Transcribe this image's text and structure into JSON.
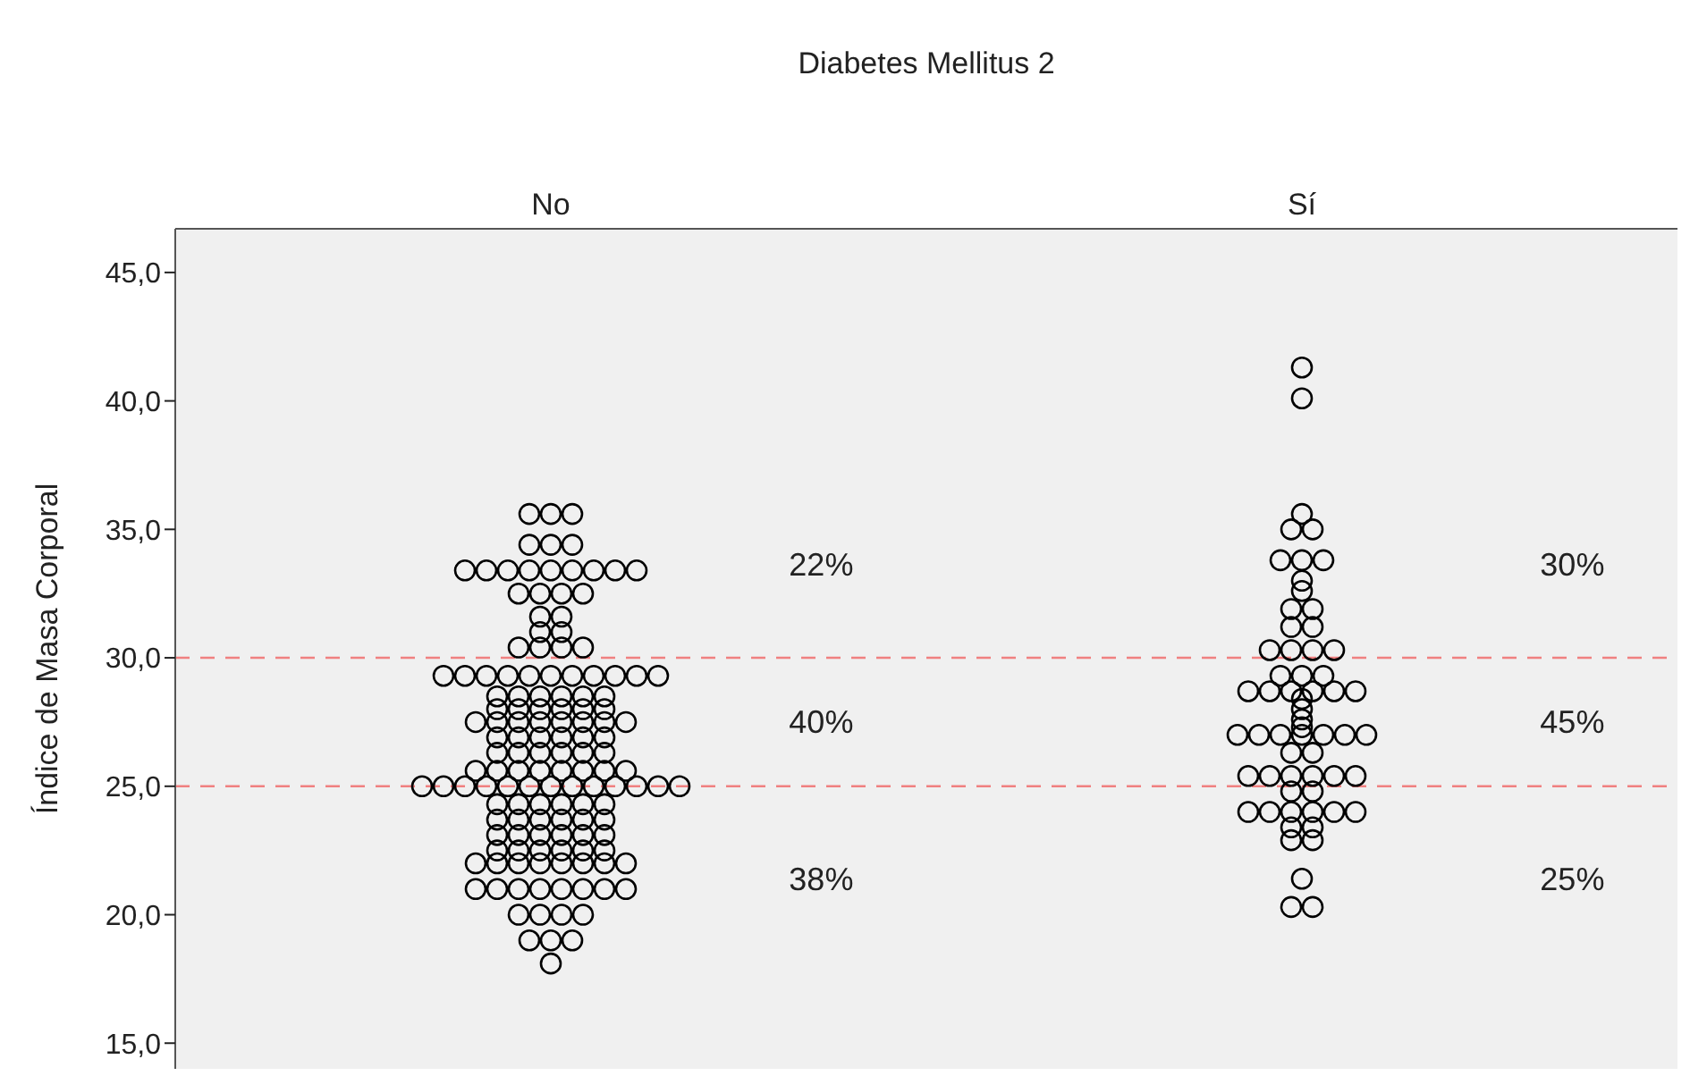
{
  "chart_data": {
    "type": "scatter",
    "xlabel": "Diabetes Mellitus 2",
    "ylabel": "Índice de Masa Corporal",
    "categories": [
      "No",
      "Sí"
    ],
    "ylim": [
      14,
      46.7
    ],
    "yticks": [
      {
        "value": 15,
        "label": "15,0"
      },
      {
        "value": 20,
        "label": "20,0"
      },
      {
        "value": 25,
        "label": "25,0"
      },
      {
        "value": 30,
        "label": "30,0"
      },
      {
        "value": 35,
        "label": "35,0"
      },
      {
        "value": 40,
        "label": "40,0"
      },
      {
        "value": 45,
        "label": "45,0"
      }
    ],
    "marker": "circle",
    "series": [
      {
        "color": "#000000",
        "x": [
          "No",
          "No",
          "No",
          "No",
          "No",
          "No",
          "No",
          "No",
          "No",
          "No",
          "No",
          "No",
          "No",
          "No",
          "No",
          "No",
          "No",
          "No",
          "No",
          "No",
          "No",
          "No",
          "No",
          "No",
          "No",
          "No",
          "No",
          "No",
          "No",
          "No",
          "No",
          "No",
          "No",
          "No",
          "No",
          "No",
          "No",
          "No",
          "No",
          "No",
          "No",
          "No",
          "No",
          "No",
          "No",
          "No",
          "No",
          "No",
          "No",
          "No",
          "No",
          "No",
          "No",
          "No",
          "No",
          "No",
          "No",
          "No",
          "No",
          "No",
          "No",
          "No",
          "No",
          "No",
          "No",
          "No",
          "No",
          "No",
          "No",
          "No",
          "No",
          "No",
          "No",
          "No",
          "No",
          "No",
          "No",
          "No",
          "No",
          "No",
          "No",
          "No",
          "No",
          "No",
          "No",
          "No",
          "No",
          "No",
          "No",
          "No",
          "No",
          "No",
          "No",
          "No",
          "No",
          "No",
          "No",
          "No",
          "No",
          "No",
          "No",
          "No",
          "No",
          "No",
          "No",
          "No",
          "No",
          "No",
          "No",
          "No",
          "No",
          "No",
          "No",
          "No",
          "No",
          "No",
          "No",
          "No",
          "No",
          "No",
          "No",
          "No",
          "No",
          "No",
          "No",
          "No",
          "No",
          "No",
          "No",
          "No",
          "No",
          "No",
          "No",
          "No",
          "No",
          "No",
          "No",
          "No",
          "No"
        ],
        "values": [
          35.6,
          35.6,
          35.6,
          34.4,
          34.4,
          34.4,
          33.4,
          33.4,
          33.4,
          33.4,
          33.4,
          33.4,
          33.4,
          33.4,
          33.4,
          32.5,
          32.5,
          32.5,
          32.5,
          31.6,
          31.6,
          31.0,
          31.0,
          30.4,
          30.4,
          30.4,
          30.4,
          29.3,
          29.3,
          29.3,
          29.3,
          29.3,
          29.3,
          29.3,
          29.3,
          29.3,
          29.3,
          29.3,
          28.5,
          28.5,
          28.5,
          28.5,
          28.5,
          28.5,
          28.0,
          28.0,
          28.0,
          28.0,
          28.0,
          28.0,
          27.5,
          27.5,
          27.5,
          27.5,
          27.5,
          27.5,
          27.5,
          27.5,
          26.9,
          26.9,
          26.9,
          26.9,
          26.9,
          26.9,
          26.3,
          26.3,
          26.3,
          26.3,
          26.3,
          26.3,
          25.6,
          25.6,
          25.6,
          25.6,
          25.6,
          25.6,
          25.6,
          25.6,
          25.0,
          25.0,
          25.0,
          25.0,
          25.0,
          25.0,
          25.0,
          25.0,
          25.0,
          25.0,
          25.0,
          25.0,
          25.0,
          24.3,
          24.3,
          24.3,
          24.3,
          24.3,
          24.3,
          23.7,
          23.7,
          23.7,
          23.7,
          23.7,
          23.7,
          23.1,
          23.1,
          23.1,
          23.1,
          23.1,
          23.1,
          22.5,
          22.5,
          22.5,
          22.5,
          22.5,
          22.5,
          22.0,
          22.0,
          22.0,
          22.0,
          22.0,
          22.0,
          22.0,
          22.0,
          21.0,
          21.0,
          21.0,
          21.0,
          21.0,
          21.0,
          21.0,
          21.0,
          20.0,
          20.0,
          20.0,
          20.0,
          19.0,
          19.0,
          19.0,
          18.1
        ]
      },
      {
        "color": "#000000",
        "x": [
          "Sí",
          "Sí",
          "Sí",
          "Sí",
          "Sí",
          "Sí",
          "Sí",
          "Sí",
          "Sí",
          "Sí",
          "Sí",
          "Sí",
          "Sí",
          "Sí",
          "Sí",
          "Sí",
          "Sí",
          "Sí",
          "Sí",
          "Sí",
          "Sí",
          "Sí",
          "Sí",
          "Sí",
          "Sí",
          "Sí",
          "Sí",
          "Sí",
          "Sí",
          "Sí",
          "Sí",
          "Sí",
          "Sí",
          "Sí",
          "Sí",
          "Sí",
          "Sí",
          "Sí",
          "Sí",
          "Sí",
          "Sí",
          "Sí",
          "Sí",
          "Sí",
          "Sí",
          "Sí",
          "Sí",
          "Sí",
          "Sí",
          "Sí",
          "Sí",
          "Sí",
          "Sí",
          "Sí",
          "Sí",
          "Sí",
          "Sí",
          "Sí",
          "Sí",
          "Sí",
          "Sí"
        ],
        "values": [
          41.3,
          40.1,
          35.6,
          35.0,
          35.0,
          33.8,
          33.8,
          33.8,
          33.0,
          32.6,
          31.9,
          31.9,
          31.2,
          31.2,
          30.3,
          30.3,
          30.3,
          30.3,
          29.3,
          29.3,
          29.3,
          28.7,
          28.7,
          28.7,
          28.7,
          28.7,
          28.7,
          28.4,
          28.0,
          27.6,
          27.3,
          27.0,
          27.0,
          27.0,
          27.0,
          27.0,
          27.0,
          27.0,
          26.3,
          26.3,
          25.4,
          25.4,
          25.4,
          25.4,
          25.4,
          25.4,
          24.8,
          24.8,
          24.0,
          24.0,
          24.0,
          24.0,
          24.0,
          24.0,
          23.4,
          23.4,
          22.9,
          22.9,
          21.4,
          20.3,
          20.3
        ]
      }
    ],
    "ref_lines": [
      {
        "axis": "y",
        "value": 30,
        "color": "#f08080",
        "line_style": "dashed"
      },
      {
        "axis": "y",
        "value": 25,
        "color": "#f08080",
        "line_style": "dashed"
      }
    ],
    "annotations": [
      "22%",
      "40%",
      "38%",
      "30%",
      "45%",
      "25%"
    ]
  }
}
